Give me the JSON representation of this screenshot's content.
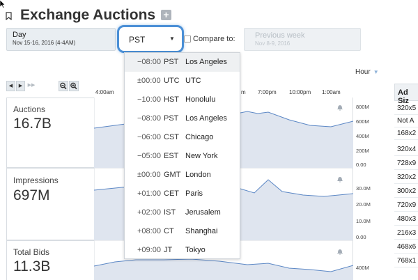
{
  "header": {
    "title": "Exchange Auctions",
    "add_icon": "plus-icon",
    "bookmark_icon": "bookmark-icon"
  },
  "date_range": {
    "label": "Day",
    "range": "Nov 15-16, 2016 (4-4AM)"
  },
  "timezone_select": {
    "value": "PST",
    "caret_icon": "caret-down-icon"
  },
  "compare": {
    "label": "Compare to:",
    "checked": false,
    "option_label": "Previous week",
    "option_range": "Nov 8-9, 2016"
  },
  "granularity": {
    "value": "Hour"
  },
  "timeline": {
    "labels": [
      "4:00am",
      "m",
      "7:00pm",
      "10:00pm",
      "1:00am"
    ]
  },
  "metrics": [
    {
      "name": "Auctions",
      "value": "16.7B",
      "axis": [
        "800M",
        "600M",
        "400M",
        "200M",
        "0.00"
      ]
    },
    {
      "name": "Impressions",
      "value": "697M",
      "axis": [
        "30.0M",
        "20.0M",
        "10.0M",
        "0.00"
      ]
    },
    {
      "name": "Total Bids",
      "value": "11.3B",
      "axis": [
        "400M"
      ]
    }
  ],
  "ad_sizes": {
    "header": "Ad Siz",
    "rows": [
      "320x5",
      "Not A",
      "168x2",
      "320x4",
      "728x9",
      "320x2",
      "300x2",
      "720x9",
      "480x3",
      "216x3",
      "468x6",
      "768x1"
    ]
  },
  "timezone_menu": [
    {
      "offset": "−08:00",
      "code": "PST",
      "city": "Los Angeles",
      "selected": true
    },
    {
      "offset": "±00:00",
      "code": "UTC",
      "city": "UTC",
      "selected": false
    },
    {
      "offset": "−10:00",
      "code": "HST",
      "city": "Honolulu",
      "selected": false
    },
    {
      "offset": "−08:00",
      "code": "PST",
      "city": "Los Angeles",
      "selected": false
    },
    {
      "offset": "−06:00",
      "code": "CST",
      "city": "Chicago",
      "selected": false
    },
    {
      "offset": "−05:00",
      "code": "EST",
      "city": "New York",
      "selected": false
    },
    {
      "offset": "±00:00",
      "code": "GMT",
      "city": "London",
      "selected": false
    },
    {
      "offset": "+01:00",
      "code": "CET",
      "city": "Paris",
      "selected": false
    },
    {
      "offset": "+02:00",
      "code": "IST",
      "city": "Jerusalem",
      "selected": false
    },
    {
      "offset": "+08:00",
      "code": "CT",
      "city": "Shanghai",
      "selected": false
    },
    {
      "offset": "+09:00",
      "code": "JT",
      "city": "Tokyo",
      "selected": false
    }
  ],
  "colors": {
    "accent": "#4a8fd6",
    "chart_fill": "#dfe5ef",
    "chart_line": "#5b87c5"
  }
}
